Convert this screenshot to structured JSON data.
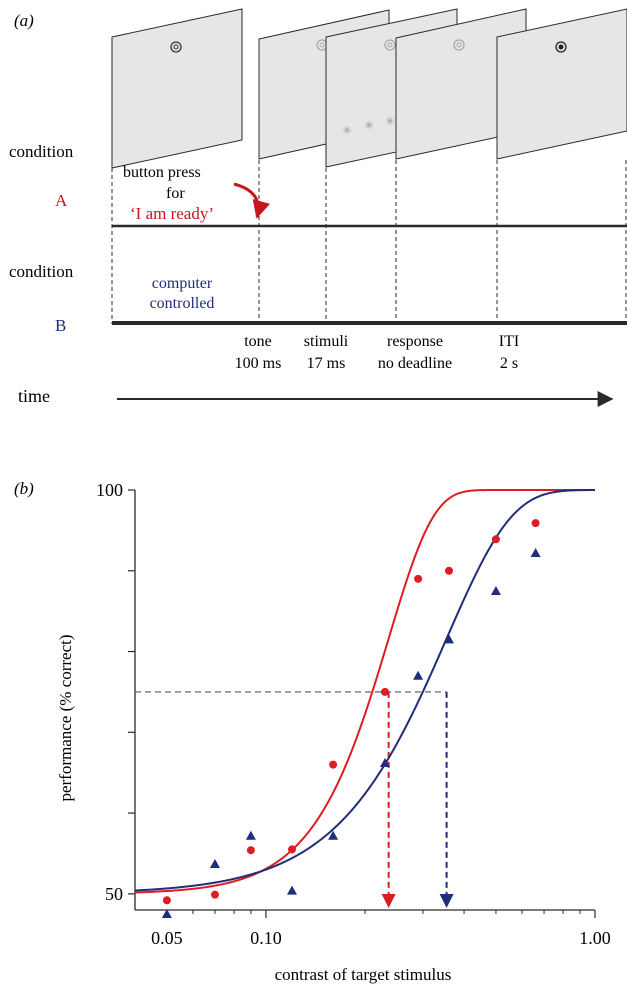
{
  "panel_a": {
    "label": "(a)",
    "condition_label": "condition",
    "condition_a_letter": "A",
    "condition_b_letter": "B",
    "button_press_lines": [
      "button press",
      "for"
    ],
    "ready_label": "‘I am ready’",
    "computer_lines": [
      "computer",
      "controlled"
    ],
    "phases": [
      {
        "name": "tone",
        "duration": "100 ms"
      },
      {
        "name": "stimuli",
        "duration": "17 ms"
      },
      {
        "name": "response",
        "duration": "no deadline"
      },
      {
        "name": "ITI",
        "duration": "2 s"
      }
    ],
    "time_label": "time",
    "colors": {
      "condition_a": "#c8161d",
      "condition_b": "#1f2d7a",
      "screen": "#e6e6e6"
    }
  },
  "panel_b": {
    "label": "(b)",
    "ylabel": "performance (% correct)",
    "xlabel": "contrast of target stimulus"
  },
  "chart_data": {
    "type": "scatter",
    "x_scale": "log",
    "xlim": [
      0.04,
      1.0
    ],
    "ylim": [
      48,
      100
    ],
    "x_ticks": [
      0.05,
      0.1,
      1.0
    ],
    "x_tick_labels": [
      "0.05",
      "0.10",
      "1.00"
    ],
    "y_tick_labels": [
      {
        "value": 50,
        "label": "50"
      },
      {
        "value": 100,
        "label": "100"
      }
    ],
    "y_ticks": [
      50,
      60,
      70,
      80,
      90,
      100
    ],
    "threshold_level": 75,
    "series": [
      {
        "name": "A",
        "color": "#dd1c24",
        "marker": "circle",
        "x": [
          0.05,
          0.07,
          0.09,
          0.12,
          0.16,
          0.23,
          0.29,
          0.36,
          0.5,
          0.66
        ],
        "y": [
          49.2,
          49.9,
          55.4,
          55.5,
          66.0,
          75.0,
          89.0,
          90.0,
          93.9,
          95.9
        ],
        "fit": {
          "threshold": 0.236,
          "slope": 3.2,
          "guess": 50,
          "asymptote": 100
        }
      },
      {
        "name": "B",
        "color": "#1f2d7a",
        "marker": "triangle",
        "x": [
          0.05,
          0.07,
          0.09,
          0.12,
          0.16,
          0.23,
          0.29,
          0.36,
          0.5,
          0.66
        ],
        "y": [
          47.5,
          53.7,
          57.2,
          50.4,
          57.2,
          66.2,
          77.0,
          81.5,
          87.5,
          92.2
        ],
        "fit": {
          "threshold": 0.354,
          "slope": 2.2,
          "guess": 50,
          "asymptote": 100
        }
      }
    ]
  }
}
